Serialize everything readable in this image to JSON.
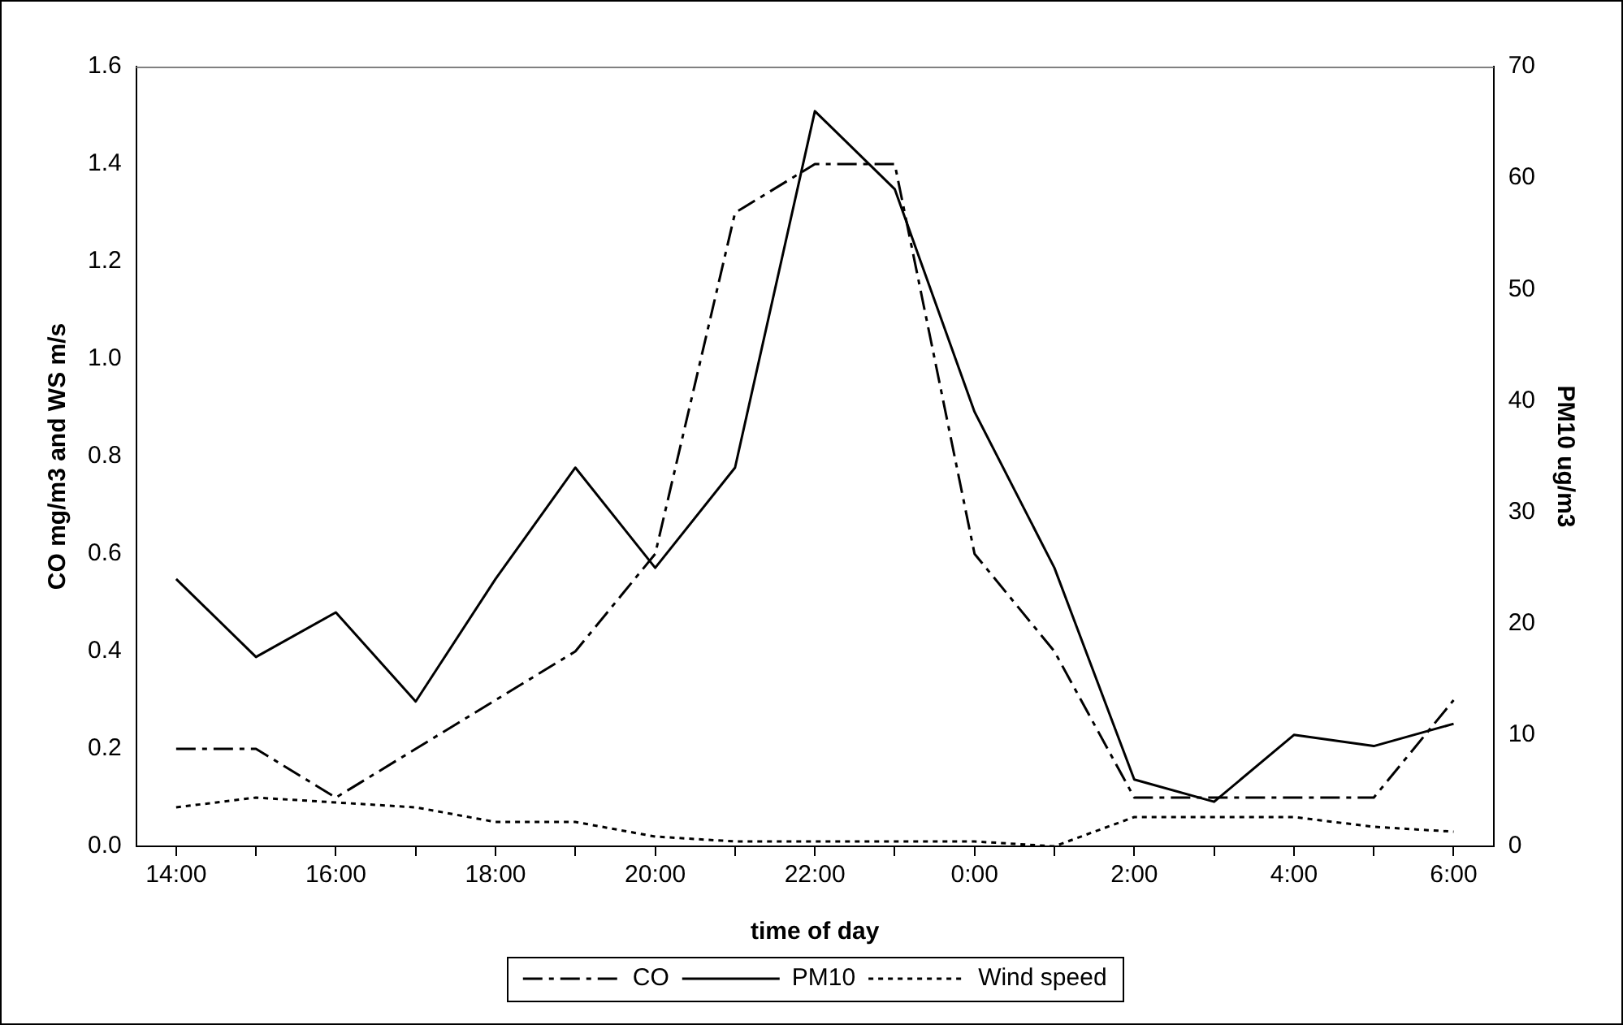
{
  "chart_data": {
    "type": "line",
    "xlabel": "time of day",
    "ylabel": "CO mg/m3 and WS m/s",
    "y2label": "PM10 ug/m3",
    "categories": [
      "14:00",
      null,
      "16:00",
      null,
      "18:00",
      null,
      "20:00",
      null,
      "22:00",
      null,
      "0:00",
      null,
      "2:00",
      null,
      "4:00",
      null,
      "6:00"
    ],
    "series": [
      {
        "name": "CO",
        "color": "#000000",
        "line_style": "dashdot",
        "axis": "y",
        "values": [
          0.2,
          0.2,
          0.1,
          0.2,
          0.3,
          0.4,
          0.6,
          1.3,
          1.4,
          1.4,
          0.6,
          0.4,
          0.1,
          0.1,
          0.1,
          0.1,
          0.3
        ]
      },
      {
        "name": "PM10",
        "color": "#000000",
        "line_style": "solid",
        "axis": "y2",
        "values": [
          24,
          17,
          21,
          13,
          24,
          34,
          25,
          34,
          66,
          59,
          39,
          25,
          6,
          4,
          10,
          9,
          11
        ]
      },
      {
        "name": "Wind speed",
        "color": "#000000",
        "line_style": "dotted",
        "axis": "y",
        "values": [
          0.08,
          0.1,
          0.09,
          0.08,
          0.05,
          0.05,
          0.02,
          0.01,
          0.01,
          0.01,
          0.01,
          0.0,
          0.06,
          0.06,
          0.06,
          0.04,
          0.03
        ]
      }
    ],
    "ylim": [
      0,
      1.6
    ],
    "yticks": [
      {
        "value": 0,
        "label": "0.0"
      },
      {
        "value": 0.2,
        "label": "0.2"
      },
      {
        "value": 0.4,
        "label": "0.4"
      },
      {
        "value": 0.6,
        "label": "0.6"
      },
      {
        "value": 0.8,
        "label": "0.8"
      },
      {
        "value": 1.0,
        "label": "1.0"
      },
      {
        "value": 1.2,
        "label": "1.2"
      },
      {
        "value": 1.4,
        "label": "1.4"
      },
      {
        "value": 1.6,
        "label": "1.6"
      }
    ],
    "y2lim": [
      0,
      70
    ],
    "y2ticks": [
      0,
      10,
      20,
      30,
      40,
      50,
      60,
      70
    ],
    "grid": false,
    "legend": "bottom",
    "marker": "none"
  }
}
